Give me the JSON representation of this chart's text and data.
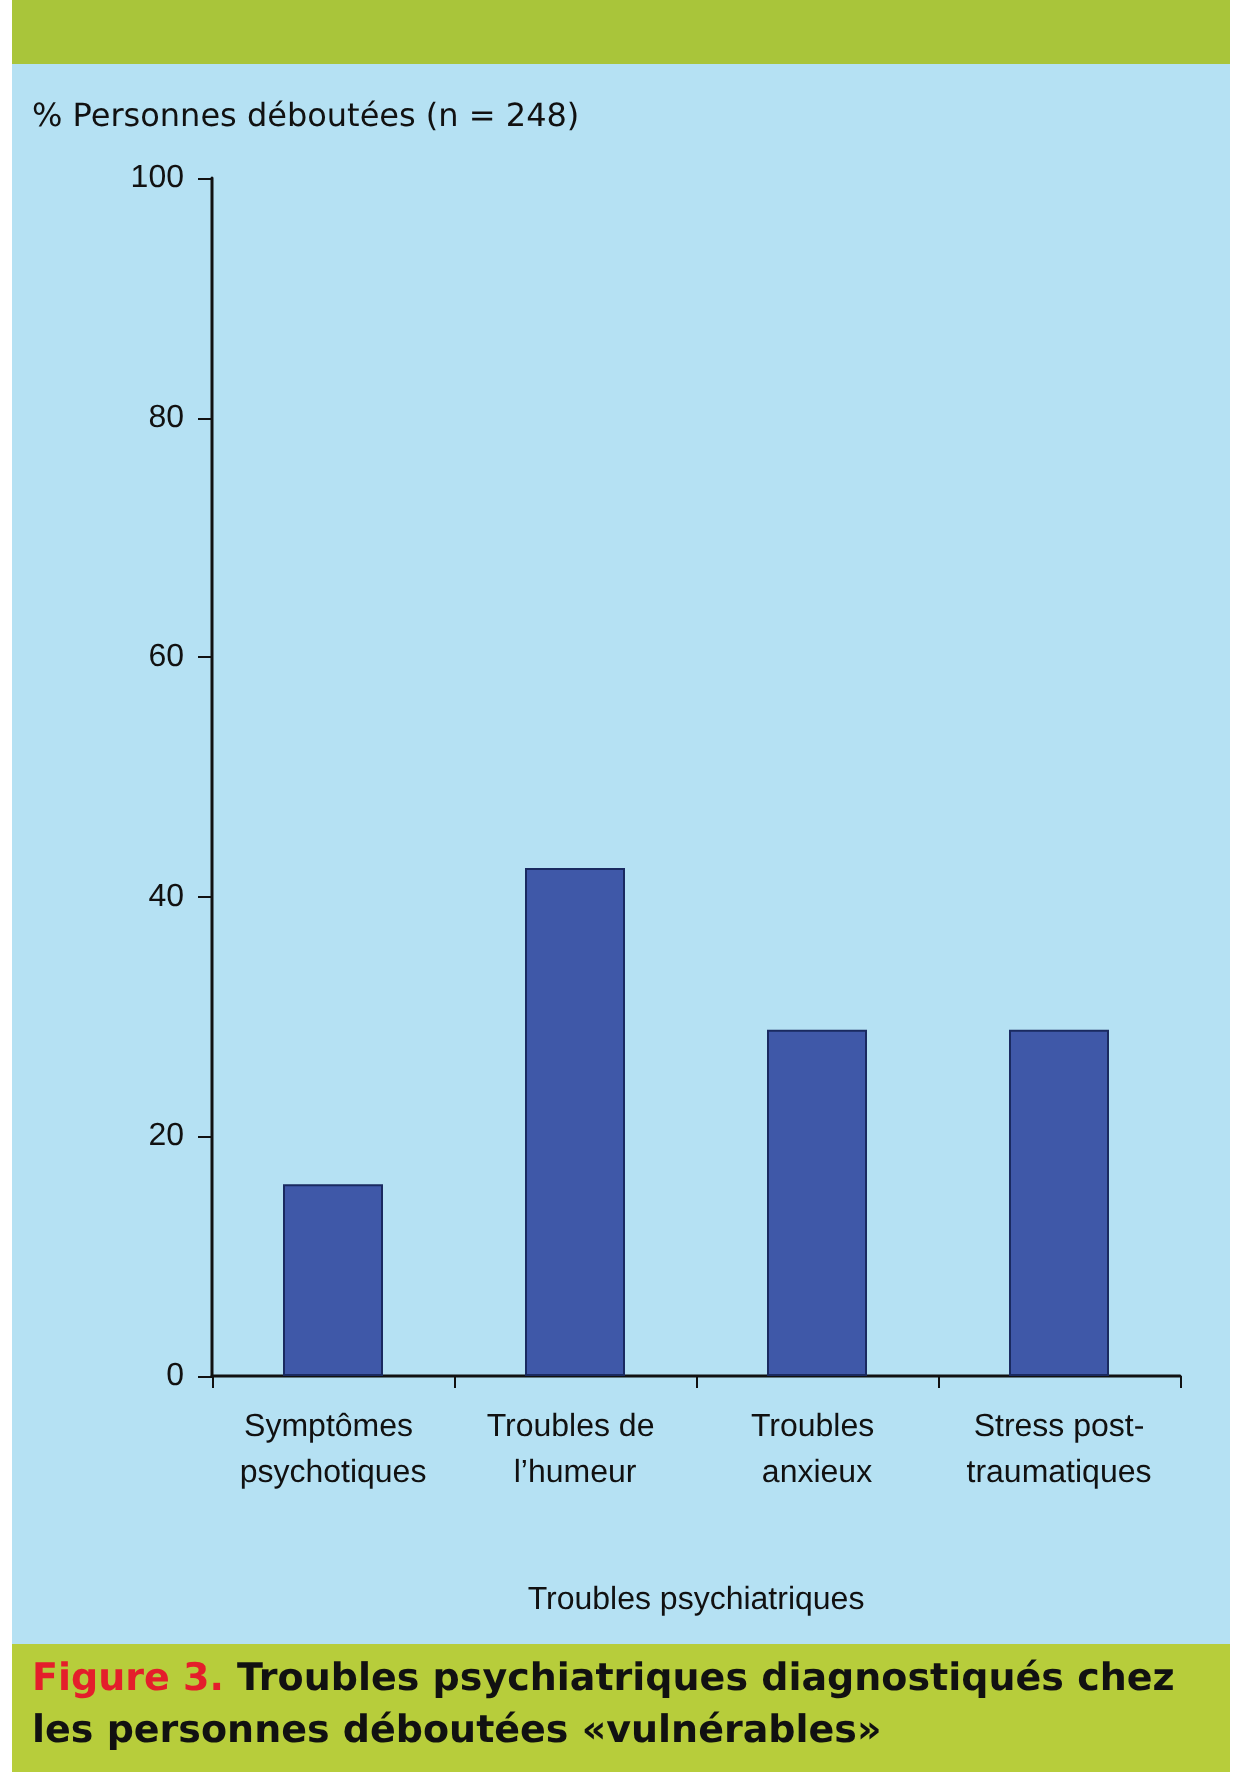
{
  "chart_data": {
    "type": "bar",
    "title": "Figure 3. Troubles psychiatriques diagnostiqués chez les personnes déboutées «vulnérables»",
    "ylabel": "% Personnes déboutées (n = 248)",
    "xlabel": "Troubles psychiatriques",
    "categories": [
      "Symptômes psychotiques",
      "Troubles de l’humeur",
      "Troubles anxieux",
      "Stress post-traumatiques"
    ],
    "values": [
      16,
      42.4,
      28.9,
      28.9
    ],
    "color": "#3f58a8",
    "ylim": [
      0,
      100
    ],
    "yticks": [
      0,
      20,
      40,
      60,
      80,
      100
    ],
    "grid": false
  }
}
